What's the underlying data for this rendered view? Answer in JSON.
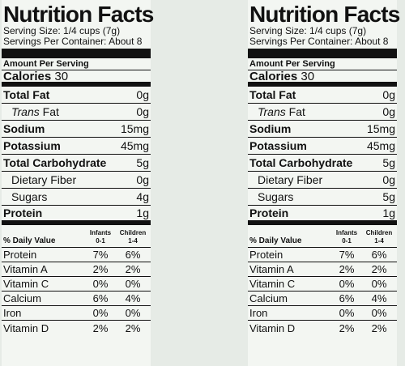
{
  "panels": [
    {
      "title": "Nutrition Facts",
      "serving_size": "Serving Size: 1/4 cups (7g)",
      "servings_per_container": "Servings Per Container: About 8",
      "amount_per_serving": "Amount Per Serving",
      "calories_label": "Calories",
      "calories_value": "30",
      "nutrients": [
        {
          "label": "Total Fat",
          "value": "0g"
        },
        {
          "label_italic": "Trans",
          "label": " Fat",
          "value": "0g"
        },
        {
          "label": "Sodium",
          "value": "15mg"
        },
        {
          "label": "Potassium",
          "value": "45mg"
        },
        {
          "label": "Total Carbohydrate",
          "value": "5g"
        },
        {
          "label": "Dietary Fiber",
          "value": "0g"
        },
        {
          "label": "Sugars",
          "value": "4g"
        },
        {
          "label": "Protein",
          "value": "1g"
        }
      ],
      "daily_value_header": "% Daily Value",
      "col1_header": [
        "Infants",
        "0-1"
      ],
      "col2_header": [
        "Children",
        "1-4"
      ],
      "daily_values": [
        {
          "label": "Protein",
          "infants": "7%",
          "children": "6%"
        },
        {
          "label": "Vitamin A",
          "infants": "2%",
          "children": "2%"
        },
        {
          "label": "Vitamin C",
          "infants": "0%",
          "children": "0%"
        },
        {
          "label": "Calcium",
          "infants": "6%",
          "children": "4%"
        },
        {
          "label": "Iron",
          "infants": "0%",
          "children": "0%"
        },
        {
          "label": "Vitamin D",
          "infants": "2%",
          "children": "2%"
        }
      ]
    },
    {
      "title": "Nutrition Facts",
      "serving_size": "Serving Size: 1/4 cups (7g)",
      "servings_per_container": "Servings Per Container: About 8",
      "amount_per_serving": "Amount Per Serving",
      "calories_label": "Calories",
      "calories_value": "30",
      "nutrients": [
        {
          "label": "Total Fat",
          "value": "0g"
        },
        {
          "label_italic": "Trans",
          "label": " Fat",
          "value": "0g"
        },
        {
          "label": "Sodium",
          "value": "15mg"
        },
        {
          "label": "Potassium",
          "value": "45mg"
        },
        {
          "label": "Total Carbohydrate",
          "value": "5g"
        },
        {
          "label": "Dietary Fiber",
          "value": "0g"
        },
        {
          "label": "Sugars",
          "value": "5g"
        },
        {
          "label": "Protein",
          "value": "1g"
        }
      ],
      "daily_value_header": "% Daily Value",
      "col1_header": [
        "Infants",
        "0-1"
      ],
      "col2_header": [
        "Children",
        "1-4"
      ],
      "daily_values": [
        {
          "label": "Protein",
          "infants": "7%",
          "children": "6%"
        },
        {
          "label": "Vitamin A",
          "infants": "2%",
          "children": "2%"
        },
        {
          "label": "Vitamin C",
          "infants": "0%",
          "children": "0%"
        },
        {
          "label": "Calcium",
          "infants": "6%",
          "children": "4%"
        },
        {
          "label": "Iron",
          "infants": "0%",
          "children": "0%"
        },
        {
          "label": "Vitamin D",
          "infants": "2%",
          "children": "2%"
        }
      ]
    }
  ]
}
